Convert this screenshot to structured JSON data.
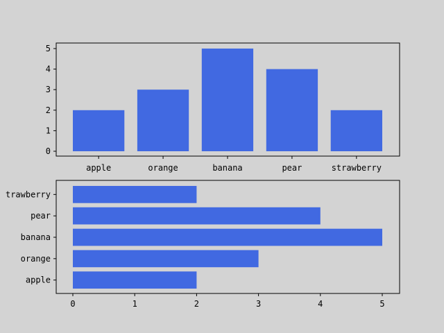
{
  "colors": {
    "background": "#d3d3d3",
    "plot_background": "#d3d3d3",
    "bar": "#4169e1",
    "axis": "#000000"
  },
  "chart_data": [
    {
      "type": "bar",
      "orientation": "vertical",
      "categories": [
        "apple",
        "orange",
        "banana",
        "pear",
        "strawberry"
      ],
      "values": [
        2,
        3,
        5,
        4,
        2
      ],
      "title": "",
      "xlabel": "",
      "ylabel": "",
      "ylim": [
        0,
        5
      ],
      "yticks": [
        "0",
        "1",
        "2",
        "3",
        "4",
        "5"
      ],
      "grid": false,
      "legend": false
    },
    {
      "type": "bar",
      "orientation": "horizontal",
      "categories": [
        "apple",
        "orange",
        "banana",
        "pear",
        "strawberry"
      ],
      "category_labels_displayed": [
        "apple",
        "orange",
        "banana",
        "pear",
        "trawberry"
      ],
      "values": [
        2,
        3,
        5,
        4,
        2
      ],
      "title": "",
      "xlabel": "",
      "ylabel": "",
      "xlim": [
        0,
        5
      ],
      "xticks": [
        "0",
        "1",
        "2",
        "3",
        "4",
        "5"
      ],
      "grid": false,
      "legend": false
    }
  ]
}
